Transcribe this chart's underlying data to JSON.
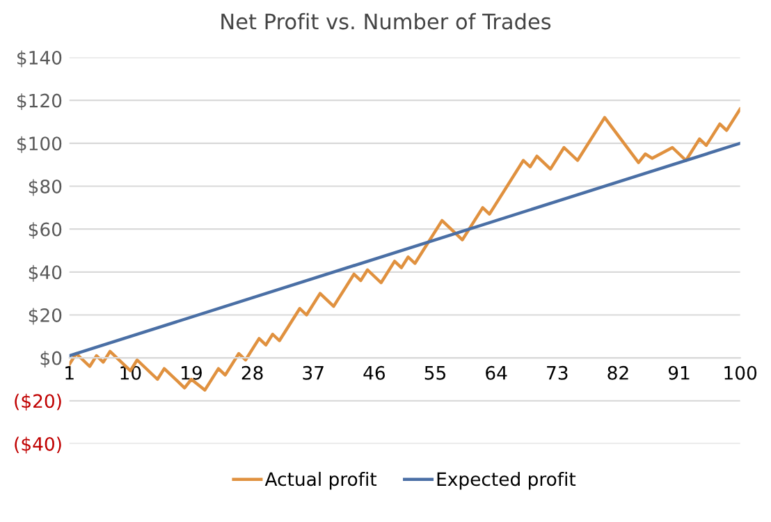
{
  "chart_data": {
    "type": "line",
    "title": "Net Profit vs. Number of Trades",
    "series": [
      {
        "name": "Actual profit",
        "color": "#e0913f",
        "x": [
          1,
          2,
          4,
          5,
          6,
          7,
          10,
          11,
          14,
          15,
          18,
          19,
          21,
          23,
          24,
          26,
          27,
          29,
          30,
          31,
          32,
          35,
          36,
          38,
          40,
          43,
          44,
          45,
          47,
          49,
          50,
          51,
          52,
          56,
          59,
          62,
          63,
          68,
          69,
          70,
          72,
          74,
          76,
          80,
          85,
          86,
          87,
          90,
          92,
          94,
          95,
          97,
          98,
          100
        ],
        "values": [
          -3,
          2,
          -4,
          1,
          -2,
          3,
          -6,
          -1,
          -10,
          -5,
          -14,
          -10,
          -15,
          -5,
          -8,
          2,
          -1,
          9,
          6,
          11,
          8,
          23,
          20,
          30,
          24,
          39,
          36,
          41,
          35,
          45,
          42,
          47,
          44,
          64,
          55,
          70,
          67,
          92,
          89,
          94,
          88,
          98,
          92,
          112,
          91,
          95,
          93,
          98,
          92,
          102,
          99,
          109,
          106,
          116
        ]
      },
      {
        "name": "Expected profit",
        "color": "#4a6fa5",
        "x": [
          1,
          100
        ],
        "values": [
          1,
          100
        ]
      }
    ],
    "xlim": [
      1,
      100
    ],
    "xticks": [
      1,
      10,
      19,
      28,
      37,
      46,
      55,
      64,
      73,
      82,
      91,
      100
    ],
    "ylim": [
      -40,
      140
    ],
    "yticks": [
      {
        "value": -40,
        "label": "($40)"
      },
      {
        "value": -20,
        "label": "($20)"
      },
      {
        "value": 0,
        "label": "$0"
      },
      {
        "value": 20,
        "label": "$20"
      },
      {
        "value": 40,
        "label": "$40"
      },
      {
        "value": 60,
        "label": "$60"
      },
      {
        "value": 80,
        "label": "$80"
      },
      {
        "value": 100,
        "label": "$100"
      },
      {
        "value": 120,
        "label": "$120"
      },
      {
        "value": 140,
        "label": "$140"
      }
    ],
    "grid": "y",
    "legend": "bottom",
    "marker": "none",
    "line_style": "solid"
  }
}
